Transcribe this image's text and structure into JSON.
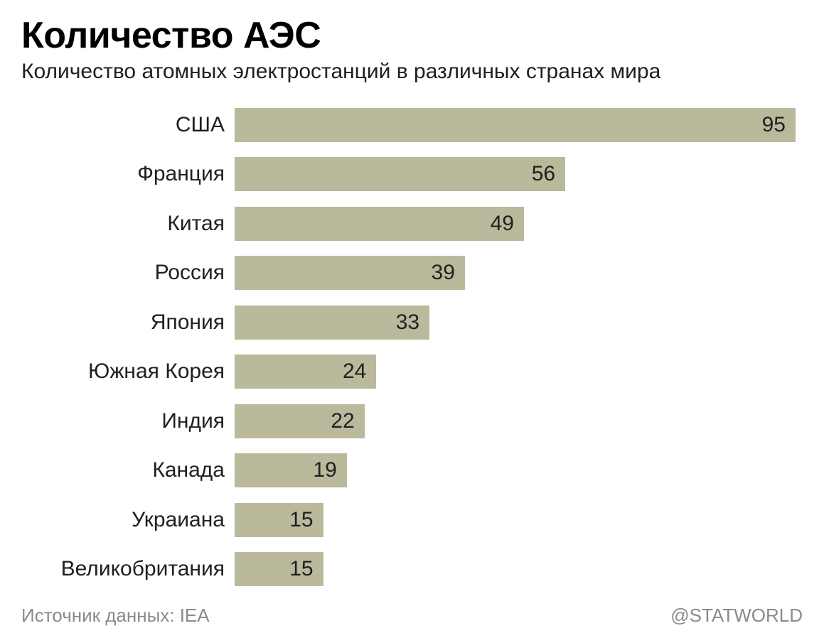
{
  "title": "Количество АЭС",
  "subtitle": "Количество атомных электростанций в различных странах мира",
  "source": "Источник данных: IEA",
  "credit": "@STATWORLD",
  "chart": {
    "type": "bar-horizontal",
    "bar_color": "#bab99b",
    "background_color": "#ffffff",
    "text_color": "#202020",
    "muted_text_color": "#8a8a8a",
    "title_fontsize": 52,
    "subtitle_fontsize": 30,
    "label_fontsize": 30,
    "value_fontsize": 30,
    "max_value": 95,
    "items": [
      {
        "label": "США",
        "value": 95
      },
      {
        "label": "Франция",
        "value": 56
      },
      {
        "label": "Китая",
        "value": 49
      },
      {
        "label": "Россия",
        "value": 39
      },
      {
        "label": "Япония",
        "value": 33
      },
      {
        "label": "Южная Корея",
        "value": 24
      },
      {
        "label": "Индия",
        "value": 22
      },
      {
        "label": "Канада",
        "value": 19
      },
      {
        "label": "Украиана",
        "value": 15
      },
      {
        "label": "Великобритания",
        "value": 15
      }
    ]
  }
}
